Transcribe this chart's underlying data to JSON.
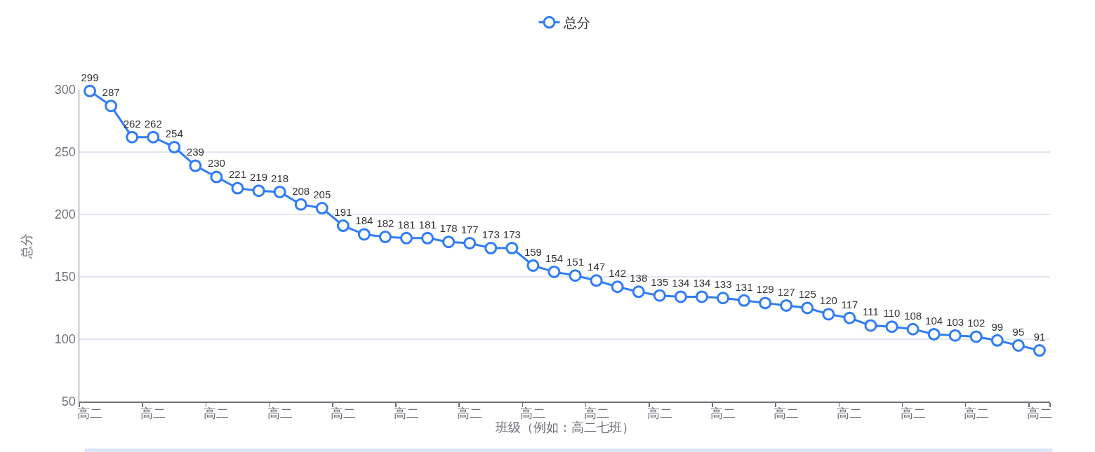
{
  "chart_data": {
    "type": "line",
    "xlabel": "班级（例如：高二七班）",
    "ylabel": "总分",
    "categories": [
      "高二",
      null,
      null,
      "高二",
      null,
      null,
      "高二",
      null,
      null,
      "高二",
      null,
      null,
      "高二",
      null,
      null,
      "高二",
      null,
      null,
      "高二",
      null,
      null,
      "高二",
      null,
      null,
      "高二",
      null,
      null,
      "高二",
      null,
      null,
      "高二",
      null,
      null,
      "高二",
      null,
      null,
      "高二",
      null,
      null,
      "高二",
      null,
      null,
      "高二",
      null,
      null,
      "高二"
    ],
    "series": [
      {
        "name": "总分",
        "color": "#2f7cf8",
        "values": [
          299,
          287,
          262,
          262,
          254,
          239,
          230,
          221,
          219,
          218,
          208,
          205,
          191,
          184,
          182,
          181,
          181,
          178,
          177,
          173,
          173,
          159,
          154,
          151,
          147,
          142,
          138,
          135,
          134,
          134,
          133,
          131,
          129,
          127,
          125,
          120,
          117,
          111,
          110,
          108,
          104,
          103,
          102,
          99,
          95,
          91
        ]
      }
    ],
    "ylim": [
      50,
      300
    ],
    "yticks": [
      50,
      100,
      150,
      200,
      250,
      300
    ],
    "grid": "y",
    "legend": "top",
    "marker": "circle",
    "line_style": "solid",
    "data_labels": true
  }
}
